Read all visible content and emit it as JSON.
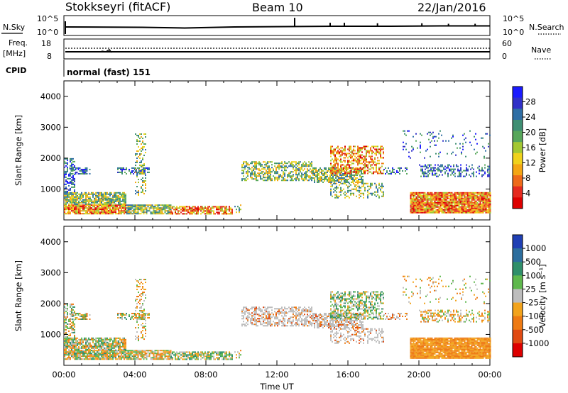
{
  "header": {
    "station": "Stokkseyri (fitACF)",
    "beam": "Beam 10",
    "date": "22/Jan/2016"
  },
  "noise_panel": {
    "left_label": "N.Sky",
    "right_label": "N.Search",
    "left_top": "10^5",
    "left_bottom": "10^0",
    "right_top": "10^5",
    "right_bottom": "10^0",
    "spikes": [
      {
        "time": "13:00",
        "height": 0.85
      },
      {
        "time": "15:00",
        "height": 0.35
      },
      {
        "time": "15:48",
        "height": 0.35
      },
      {
        "time": "17:40",
        "height": 0.3
      },
      {
        "time": "20:10",
        "height": 0.3
      },
      {
        "time": "21:40",
        "height": 0.25
      },
      {
        "time": "23:10",
        "height": 0.25
      }
    ]
  },
  "freq_panel": {
    "left_label_1": "Freq.",
    "left_label_2": "[MHz]",
    "cpid_label": "CPID",
    "right_label": "Nave",
    "left_top": "18",
    "left_bottom": "8",
    "right_top": "60",
    "right_bottom": "0"
  },
  "cpid_text": "normal (fast) 151",
  "chart_data": [
    {
      "type": "heatmap",
      "title": "",
      "ylabel": "Slant Range [km]",
      "xlabel": "",
      "ylim": [
        0,
        4500
      ],
      "yticks": [
        "1000",
        "2000",
        "3000",
        "4000"
      ],
      "colorbar": {
        "label": "Power [dB]",
        "ticks": [
          "4",
          "8",
          "12",
          "16",
          "20",
          "24",
          "28"
        ],
        "colors": [
          "#1a1aff",
          "#3030c8",
          "#2f6ea5",
          "#3f8f73",
          "#57a75b",
          "#a3c832",
          "#f0d21c",
          "#f4a614",
          "#ee6a1a",
          "#e52a1f",
          "#dd0000"
        ],
        "range": [
          0,
          32
        ]
      }
    },
    {
      "type": "heatmap",
      "title": "",
      "ylabel": "Slant Range [km]",
      "xlabel": "Time UT",
      "ylim": [
        0,
        4500
      ],
      "yticks": [
        "1000",
        "2000",
        "3000",
        "4000"
      ],
      "xticks": [
        "00:00",
        "04:00",
        "08:00",
        "12:00",
        "16:00",
        "20:00",
        "00:00"
      ],
      "colorbar": {
        "label": "Velocity [m s⁻¹]",
        "ticks": [
          "1000",
          "500",
          "100",
          "25",
          "-25",
          "-100",
          "-500",
          "-1000"
        ],
        "colors": [
          "#1f3fb4",
          "#2c6e9e",
          "#2f8f6a",
          "#5fb84d",
          "#bdbdbd",
          "#f2a31c",
          "#ee7a13",
          "#e04a12",
          "#dd0000"
        ]
      }
    }
  ]
}
